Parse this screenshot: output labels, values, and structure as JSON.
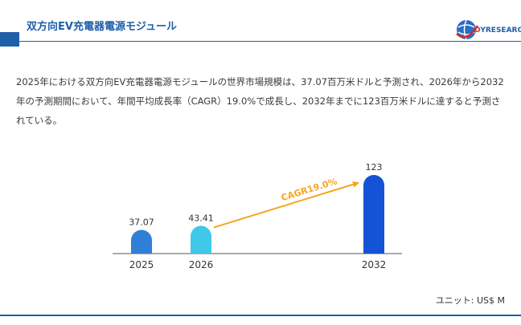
{
  "header": {
    "title": "双方向EV充電器電源モジュール",
    "logo_text_main": "Y",
    "logo_text_o": "O",
    "logo_text_rest": "RESEARCH"
  },
  "summary": {
    "text": "2025年における双方向EV充電器電源モジュールの世界市場規模は、37.07百万米ドルと予測され、2026年から2032年の予測期間において、年間平均成長率（CAGR）19.0%で成長し、2032年までに123百万米ドルに達すると予測されている。"
  },
  "chart_data": {
    "type": "bar",
    "categories": [
      "2025",
      "2026",
      "2032"
    ],
    "values": [
      37.07,
      43.41,
      123
    ],
    "value_labels": [
      "37.07",
      "43.41",
      "123"
    ],
    "colors": [
      "#2f7ed8",
      "#3fc8e8",
      "#1553d6"
    ],
    "annotation": {
      "text": "CAGR19.0%",
      "color": "#f5a623"
    },
    "ylim": [
      0,
      123
    ],
    "grid": false
  },
  "unit": {
    "label": "ユニット: US$ M"
  }
}
